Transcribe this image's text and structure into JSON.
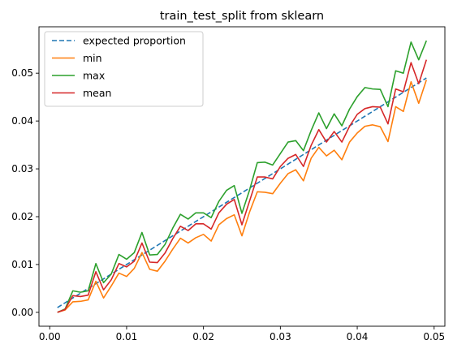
{
  "chart_data": {
    "type": "line",
    "title": "train_test_split from sklearn",
    "xlabel": "",
    "ylabel": "",
    "xlim": [
      -0.0014,
      0.0514
    ],
    "ylim": [
      -0.0029,
      0.0597
    ],
    "xticks": [
      0.0,
      0.01,
      0.02,
      0.03,
      0.04,
      0.05
    ],
    "xtick_labels": [
      "0.00",
      "0.01",
      "0.02",
      "0.03",
      "0.04",
      "0.05"
    ],
    "yticks": [
      0.0,
      0.01,
      0.02,
      0.03,
      0.04,
      0.05
    ],
    "ytick_labels": [
      "0.00",
      "0.01",
      "0.02",
      "0.03",
      "0.04",
      "0.05"
    ],
    "legend_position": "upper-left",
    "x": [
      0.001,
      0.002,
      0.003,
      0.004,
      0.005,
      0.006,
      0.007,
      0.008,
      0.009,
      0.01,
      0.011,
      0.012,
      0.013,
      0.014,
      0.015,
      0.016,
      0.017,
      0.018,
      0.019,
      0.02,
      0.021,
      0.022,
      0.023,
      0.024,
      0.025,
      0.026,
      0.027,
      0.028,
      0.029,
      0.03,
      0.031,
      0.032,
      0.033,
      0.034,
      0.035,
      0.036,
      0.037,
      0.038,
      0.039,
      0.04,
      0.041,
      0.042,
      0.043,
      0.044,
      0.045,
      0.046,
      0.047,
      0.048,
      0.049
    ],
    "series": [
      {
        "name": "expected proportion",
        "color": "#1f77b4",
        "dash": "dashed",
        "values": [
          0.001,
          0.002,
          0.003,
          0.004,
          0.005,
          0.006,
          0.007,
          0.008,
          0.009,
          0.01,
          0.011,
          0.012,
          0.013,
          0.014,
          0.015,
          0.016,
          0.017,
          0.018,
          0.019,
          0.02,
          0.021,
          0.022,
          0.023,
          0.024,
          0.025,
          0.026,
          0.027,
          0.028,
          0.029,
          0.03,
          0.031,
          0.032,
          0.033,
          0.034,
          0.035,
          0.036,
          0.037,
          0.038,
          0.039,
          0.04,
          0.041,
          0.042,
          0.043,
          0.044,
          0.045,
          0.046,
          0.047,
          0.048,
          0.049
        ]
      },
      {
        "name": "min",
        "color": "#ff7f0e",
        "dash": "solid",
        "values": [
          0.0,
          0.0005,
          0.0022,
          0.0023,
          0.0026,
          0.0065,
          0.003,
          0.0055,
          0.0082,
          0.0075,
          0.0092,
          0.0125,
          0.009,
          0.0086,
          0.0107,
          0.0132,
          0.0155,
          0.0145,
          0.0156,
          0.0163,
          0.0149,
          0.0183,
          0.0196,
          0.0204,
          0.016,
          0.021,
          0.0252,
          0.0251,
          0.0248,
          0.027,
          0.029,
          0.0298,
          0.0275,
          0.0322,
          0.0345,
          0.0327,
          0.0339,
          0.0319,
          0.0356,
          0.0375,
          0.0389,
          0.0392,
          0.0388,
          0.0357,
          0.043,
          0.042,
          0.0482,
          0.0437,
          0.0486
        ]
      },
      {
        "name": "max",
        "color": "#2ca02c",
        "dash": "solid",
        "values": [
          0.0,
          0.0007,
          0.0045,
          0.0042,
          0.0045,
          0.0102,
          0.0062,
          0.008,
          0.0121,
          0.0111,
          0.0125,
          0.0167,
          0.012,
          0.0121,
          0.0142,
          0.0176,
          0.0205,
          0.0195,
          0.0208,
          0.0208,
          0.0198,
          0.0232,
          0.0255,
          0.0265,
          0.0207,
          0.0256,
          0.0313,
          0.0314,
          0.0308,
          0.0332,
          0.0356,
          0.0359,
          0.0338,
          0.038,
          0.0417,
          0.0384,
          0.0415,
          0.039,
          0.0425,
          0.0451,
          0.047,
          0.0467,
          0.0466,
          0.043,
          0.0505,
          0.05,
          0.0565,
          0.0528,
          0.0568
        ]
      },
      {
        "name": "mean",
        "color": "#d62728",
        "dash": "solid",
        "values": [
          0.0,
          0.0006,
          0.0035,
          0.0033,
          0.0036,
          0.0085,
          0.0047,
          0.0068,
          0.0102,
          0.0095,
          0.0107,
          0.0145,
          0.0105,
          0.0104,
          0.0124,
          0.0154,
          0.018,
          0.0171,
          0.0185,
          0.0185,
          0.0174,
          0.0208,
          0.0226,
          0.0236,
          0.0183,
          0.0233,
          0.0283,
          0.0283,
          0.0279,
          0.0305,
          0.0322,
          0.033,
          0.0305,
          0.0349,
          0.0382,
          0.0356,
          0.0378,
          0.0356,
          0.0389,
          0.0414,
          0.0426,
          0.043,
          0.0429,
          0.0394,
          0.0467,
          0.0461,
          0.0522,
          0.0478,
          0.0528
        ]
      }
    ]
  }
}
